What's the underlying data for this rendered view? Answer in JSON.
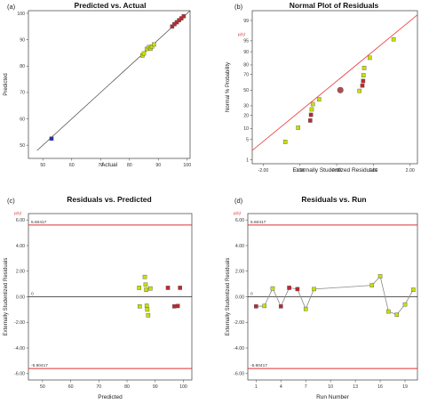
{
  "chart_data": [
    {
      "id": "a",
      "panel_label": "(a)",
      "type": "scatter",
      "title": "Predicted vs. Actual",
      "xlabel": "Actual",
      "ylabel": "Predicted",
      "xlim": [
        45,
        101
      ],
      "ylim": [
        45,
        101
      ],
      "xticks": [
        "50",
        "60",
        "70",
        "80",
        "90",
        "100"
      ],
      "yticks": [
        "50",
        "60",
        "70",
        "80",
        "90",
        "100"
      ],
      "xtick_values": [
        50,
        60,
        70,
        80,
        90,
        100
      ],
      "ytick_values": [
        50,
        60,
        70,
        80,
        90,
        100
      ],
      "reference_line": {
        "x": [
          48,
          101
        ],
        "y": [
          48,
          101
        ]
      },
      "colors": {
        "low": "#1f2fbf",
        "mid": "#c8e000",
        "high": "#c0272d",
        "line": "#444444"
      },
      "points": [
        {
          "x": 53.0,
          "y": 52.5,
          "color": "low"
        },
        {
          "x": 84.5,
          "y": 84.0,
          "color": "mid"
        },
        {
          "x": 85.0,
          "y": 84.8,
          "color": "mid"
        },
        {
          "x": 86.0,
          "y": 86.5,
          "color": "mid"
        },
        {
          "x": 86.8,
          "y": 87.2,
          "color": "mid"
        },
        {
          "x": 87.3,
          "y": 86.6,
          "color": "mid"
        },
        {
          "x": 87.8,
          "y": 87.4,
          "color": "mid"
        },
        {
          "x": 88.5,
          "y": 88.2,
          "color": "mid"
        },
        {
          "x": 94.8,
          "y": 95.0,
          "color": "high"
        },
        {
          "x": 95.6,
          "y": 95.9,
          "color": "high"
        },
        {
          "x": 96.4,
          "y": 96.6,
          "color": "high"
        },
        {
          "x": 97.2,
          "y": 97.4,
          "color": "high"
        },
        {
          "x": 98.0,
          "y": 98.1,
          "color": "high"
        },
        {
          "x": 98.8,
          "y": 98.9,
          "color": "high"
        }
      ]
    },
    {
      "id": "b",
      "panel_label": "(b)",
      "type": "scatter",
      "title": "Normal Plot of Residuals",
      "xlabel": "Externally Studentized Residuals",
      "ylabel": "Normal % Probability",
      "xlim": [
        -2.3,
        2.2
      ],
      "ylim": [
        0.7,
        99.6
      ],
      "xticks": [
        "-2.00",
        "-1.00",
        "0.00",
        "1.00",
        "2.00"
      ],
      "xtick_values": [
        -2.0,
        -1.0,
        0.0,
        1.0,
        2.0
      ],
      "yticks": [
        "1",
        "5",
        "10",
        "20",
        "30",
        "50",
        "70",
        "80",
        "90",
        "95",
        "99"
      ],
      "ytick_values": [
        1,
        5,
        10,
        20,
        30,
        50,
        70,
        80,
        90,
        95,
        99
      ],
      "yscale": "normal-probability",
      "reference_line": {
        "x": [
          -2.3,
          2.2
        ],
        "y": [
          2.2,
          99.4
        ]
      },
      "colors": {
        "low": "#1f2fbf",
        "mid": "#c8e000",
        "high": "#c0272d",
        "neutral": "#888888",
        "line": "#e8474a"
      },
      "points": [
        {
          "x": -1.4,
          "y": 4.2,
          "color": "mid"
        },
        {
          "x": -1.05,
          "y": 10.5,
          "color": "mid"
        },
        {
          "x": -0.72,
          "y": 15.5,
          "color": "high"
        },
        {
          "x": -0.7,
          "y": 20.5,
          "color": "high"
        },
        {
          "x": -0.68,
          "y": 26.0,
          "color": "mid"
        },
        {
          "x": -0.65,
          "y": 32.0,
          "color": "mid"
        },
        {
          "x": -0.48,
          "y": 38.0,
          "color": "mid"
        },
        {
          "x": 0.1,
          "y": 50.0,
          "color": "neutral"
        },
        {
          "x": 0.62,
          "y": 49.0,
          "color": "mid"
        },
        {
          "x": 0.7,
          "y": 56.0,
          "color": "high"
        },
        {
          "x": 0.72,
          "y": 62.0,
          "color": "high"
        },
        {
          "x": 0.73,
          "y": 69.0,
          "color": "mid"
        },
        {
          "x": 0.75,
          "y": 77.0,
          "color": "mid"
        },
        {
          "x": 0.9,
          "y": 86.0,
          "color": "mid"
        },
        {
          "x": 1.55,
          "y": 95.5,
          "color": "mid"
        }
      ],
      "side_label": "p(n)"
    },
    {
      "id": "c",
      "panel_label": "(c)",
      "type": "scatter",
      "title": "Residuals vs. Predicted",
      "xlabel": "Predicted",
      "ylabel": "Externally Studentized Residuals",
      "xlim": [
        45,
        103
      ],
      "ylim": [
        -6.5,
        6.5
      ],
      "xticks": [
        "50",
        "60",
        "70",
        "80",
        "90",
        "100"
      ],
      "xtick_values": [
        50,
        60,
        70,
        80,
        90,
        100
      ],
      "yticks": [
        "6.00",
        "4.00",
        "2.00",
        "0.00",
        "-2.00",
        "-4.00",
        "-6.00"
      ],
      "ytick_values": [
        6,
        4,
        2,
        0,
        -2,
        -4,
        -6
      ],
      "limits": {
        "upper": 5.60417,
        "lower": -5.60417,
        "center": 0
      },
      "limit_labels": {
        "upper": "5.60417",
        "lower": "-5.60417",
        "center": "0"
      },
      "side_label": "p(n)",
      "colors": {
        "low": "#1f2fbf",
        "mid": "#c8e000",
        "high": "#c0272d",
        "limit": "#e03030",
        "zero": "#222222"
      },
      "points": [
        {
          "x": 84.3,
          "y": 0.7,
          "color": "mid"
        },
        {
          "x": 84.5,
          "y": -0.75,
          "color": "mid"
        },
        {
          "x": 86.3,
          "y": 1.55,
          "color": "mid"
        },
        {
          "x": 86.6,
          "y": 0.95,
          "color": "mid"
        },
        {
          "x": 86.8,
          "y": 0.55,
          "color": "mid"
        },
        {
          "x": 87.0,
          "y": -0.7,
          "color": "mid"
        },
        {
          "x": 87.2,
          "y": -1.0,
          "color": "mid"
        },
        {
          "x": 87.5,
          "y": -1.45,
          "color": "mid"
        },
        {
          "x": 88.3,
          "y": 0.65,
          "color": "mid"
        },
        {
          "x": 94.5,
          "y": 0.7,
          "color": "high"
        },
        {
          "x": 96.8,
          "y": -0.75,
          "color": "high"
        },
        {
          "x": 98.0,
          "y": -0.72,
          "color": "high"
        },
        {
          "x": 98.8,
          "y": 0.7,
          "color": "high"
        }
      ]
    },
    {
      "id": "d",
      "panel_label": "(d)",
      "type": "line",
      "title": "Residuals vs. Run",
      "xlabel": "Run Number",
      "ylabel": "Externally Studentized Residuals",
      "xlim": [
        0,
        20.5
      ],
      "ylim": [
        -6.5,
        6.5
      ],
      "xticks": [
        "1",
        "4",
        "7",
        "10",
        "13",
        "16",
        "19"
      ],
      "xtick_values": [
        1,
        4,
        7,
        10,
        13,
        16,
        19
      ],
      "yticks": [
        "6.00",
        "4.00",
        "2.00",
        "0.00",
        "-2.00",
        "-4.00",
        "-6.00"
      ],
      "ytick_values": [
        6,
        4,
        2,
        0,
        -2,
        -4,
        -6
      ],
      "limits": {
        "upper": 5.60417,
        "lower": -5.60417,
        "center": 0
      },
      "limit_labels": {
        "upper": "5.60417",
        "lower": "-5.60417",
        "center": "0"
      },
      "side_label": "p(n)",
      "colors": {
        "low": "#1f2fbf",
        "mid": "#c8e000",
        "high": "#c0272d",
        "limit": "#e03030",
        "zero": "#222222",
        "line": "#8a8a8a"
      },
      "points": [
        {
          "x": 1,
          "y": -0.75,
          "color": "high"
        },
        {
          "x": 2,
          "y": -0.72,
          "color": "mid"
        },
        {
          "x": 3,
          "y": 0.65,
          "color": "mid"
        },
        {
          "x": 4,
          "y": -0.75,
          "color": "high"
        },
        {
          "x": 5,
          "y": 0.7,
          "color": "high"
        },
        {
          "x": 6,
          "y": 0.6,
          "color": "high"
        },
        {
          "x": 7,
          "y": -0.95,
          "color": "mid"
        },
        {
          "x": 8,
          "y": 0.6,
          "color": "mid"
        },
        {
          "x": 15,
          "y": 0.9,
          "color": "mid"
        },
        {
          "x": 16,
          "y": 1.6,
          "color": "mid"
        },
        {
          "x": 17,
          "y": -1.15,
          "color": "mid"
        },
        {
          "x": 18,
          "y": -1.4,
          "color": "mid"
        },
        {
          "x": 19,
          "y": -0.6,
          "color": "mid"
        },
        {
          "x": 20,
          "y": 0.55,
          "color": "mid"
        }
      ]
    }
  ]
}
